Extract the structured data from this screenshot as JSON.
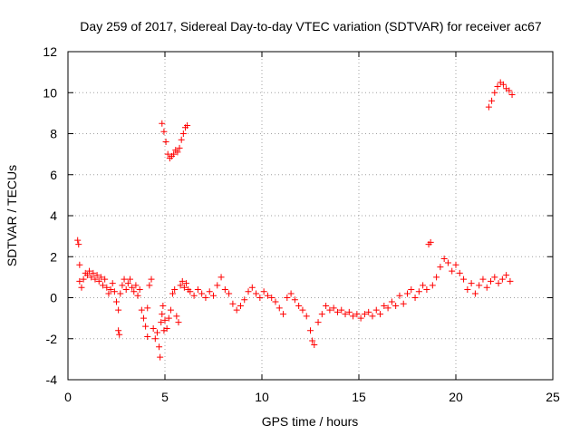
{
  "chart_data": {
    "type": "scatter",
    "title": "Day 259 of 2017, Sidereal Day-to-day VTEC variation (SDTVAR) for receiver ac67",
    "xlabel": "GPS time / hours",
    "ylabel": "SDTVAR / TECUs",
    "xlim": [
      0,
      25
    ],
    "ylim": [
      -4,
      12
    ],
    "xticks": [
      0,
      5,
      10,
      15,
      20,
      25
    ],
    "xtick_labels": [
      "0",
      "5",
      "10",
      "15",
      "20",
      "25"
    ],
    "yticks": [
      -4,
      -2,
      0,
      2,
      4,
      6,
      8,
      10,
      12
    ],
    "ytick_labels": [
      "-4",
      "-2",
      "0",
      "2",
      "4",
      "6",
      "8",
      "10",
      "12"
    ],
    "grid": true,
    "legend": "none",
    "marker": "+",
    "series": [
      {
        "name": "SDTVAR",
        "color": "#ff0000",
        "x": [
          0.5,
          0.55,
          0.6,
          0.6,
          0.7,
          0.8,
          0.9,
          1.0,
          1.1,
          1.2,
          1.3,
          1.4,
          1.5,
          1.6,
          1.7,
          1.8,
          1.9,
          2.0,
          2.1,
          2.2,
          2.3,
          2.4,
          2.5,
          2.6,
          2.6,
          2.65,
          2.7,
          2.8,
          2.9,
          3.0,
          3.1,
          3.2,
          3.3,
          3.4,
          3.5,
          3.6,
          3.7,
          3.8,
          3.9,
          4.0,
          4.1,
          4.1,
          4.2,
          4.3,
          4.4,
          4.5,
          4.6,
          4.7,
          4.75,
          4.8,
          4.85,
          4.9,
          4.95,
          5.0,
          5.1,
          5.2,
          5.3,
          5.4,
          5.5,
          5.6,
          5.7,
          5.8,
          5.9,
          6.0,
          6.1,
          6.2,
          4.85,
          4.95,
          5.05,
          5.15,
          5.25,
          5.35,
          5.45,
          5.55,
          5.65,
          5.75,
          5.85,
          5.95,
          6.05,
          6.15,
          6.3,
          6.5,
          6.7,
          6.9,
          7.1,
          7.3,
          7.5,
          7.7,
          7.9,
          8.1,
          8.3,
          8.5,
          8.7,
          8.9,
          9.1,
          9.3,
          9.5,
          9.7,
          9.9,
          10.1,
          10.3,
          10.5,
          10.7,
          10.9,
          11.1,
          11.3,
          11.5,
          11.7,
          11.9,
          12.1,
          12.3,
          12.5,
          12.6,
          12.7,
          12.9,
          13.1,
          13.3,
          13.5,
          13.7,
          13.9,
          14.1,
          14.3,
          14.5,
          14.7,
          14.9,
          15.1,
          15.3,
          15.5,
          15.7,
          15.9,
          16.1,
          16.3,
          16.5,
          16.7,
          16.9,
          17.1,
          17.3,
          17.5,
          17.7,
          17.9,
          18.1,
          18.3,
          18.5,
          18.6,
          18.7,
          18.8,
          19.0,
          19.2,
          19.4,
          19.6,
          19.8,
          20.0,
          20.2,
          20.4,
          20.6,
          20.8,
          21.0,
          21.2,
          21.4,
          21.6,
          21.8,
          22.0,
          22.2,
          22.4,
          22.6,
          22.8,
          21.7,
          21.85,
          22.0,
          22.15,
          22.3,
          22.45,
          22.6,
          22.75,
          22.9
        ],
        "y": [
          2.8,
          2.6,
          1.6,
          0.8,
          0.5,
          0.9,
          1.2,
          1.1,
          1.3,
          1.0,
          1.2,
          0.9,
          1.1,
          0.8,
          1.0,
          0.6,
          0.9,
          0.5,
          0.2,
          0.4,
          0.7,
          0.3,
          -0.2,
          -0.6,
          -1.6,
          -1.8,
          0.2,
          0.6,
          0.9,
          0.4,
          0.7,
          0.9,
          0.5,
          0.3,
          0.6,
          0.1,
          0.4,
          -0.6,
          -1.0,
          -1.4,
          -1.9,
          -0.5,
          0.6,
          0.9,
          -1.5,
          -2.0,
          -1.7,
          -2.4,
          -2.9,
          -1.2,
          -0.8,
          -0.4,
          -1.6,
          -1.1,
          -1.5,
          -1.0,
          -0.6,
          0.2,
          0.4,
          -0.9,
          -1.2,
          0.6,
          0.8,
          0.5,
          0.7,
          0.4,
          8.5,
          8.1,
          7.6,
          7.0,
          6.8,
          6.9,
          7.0,
          7.2,
          7.1,
          7.3,
          7.7,
          8.0,
          8.3,
          8.4,
          0.3,
          0.1,
          0.4,
          0.2,
          0.0,
          0.3,
          0.1,
          0.6,
          1.0,
          0.4,
          0.2,
          -0.3,
          -0.6,
          -0.4,
          -0.1,
          0.3,
          0.5,
          0.2,
          0.0,
          0.3,
          0.1,
          0.0,
          -0.2,
          -0.5,
          -0.8,
          0.0,
          0.2,
          -0.1,
          -0.4,
          -0.6,
          -0.9,
          -1.6,
          -2.1,
          -2.3,
          -1.2,
          -0.8,
          -0.4,
          -0.6,
          -0.5,
          -0.7,
          -0.6,
          -0.8,
          -0.7,
          -0.9,
          -0.8,
          -1.0,
          -0.8,
          -0.7,
          -0.9,
          -0.6,
          -0.8,
          -0.4,
          -0.5,
          -0.2,
          -0.4,
          0.1,
          -0.3,
          0.2,
          0.4,
          0.0,
          0.3,
          0.6,
          0.4,
          2.6,
          2.7,
          0.6,
          1.0,
          1.5,
          1.9,
          1.7,
          1.3,
          1.6,
          1.2,
          0.9,
          0.4,
          0.7,
          0.2,
          0.6,
          0.9,
          0.5,
          0.8,
          1.0,
          0.7,
          0.9,
          1.1,
          0.8,
          9.3,
          9.6,
          10.0,
          10.3,
          10.5,
          10.4,
          10.2,
          10.1,
          9.9
        ]
      }
    ]
  }
}
